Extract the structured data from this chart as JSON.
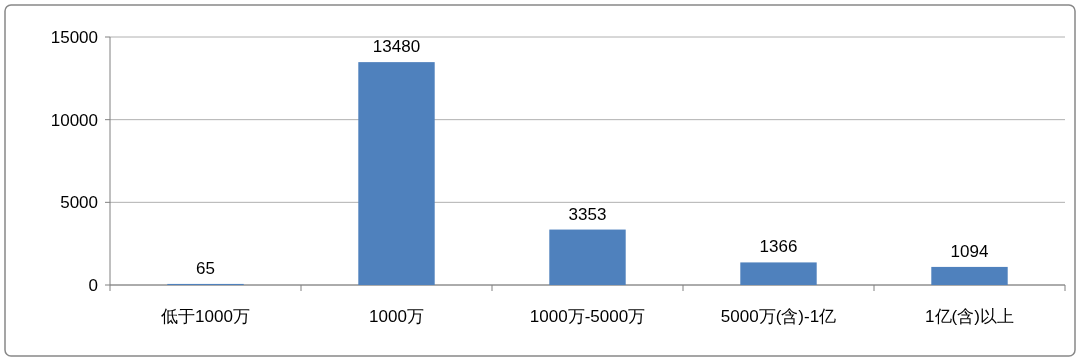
{
  "chart_data": {
    "type": "bar",
    "categories": [
      "低于1000万",
      "1000万",
      "1000万-5000万",
      "5000万(含)-1亿",
      "1亿(含)以上"
    ],
    "values": [
      65,
      13480,
      3353,
      1366,
      1094
    ],
    "color": "#4f81bd",
    "ylim": [
      0,
      15000
    ],
    "yticks": [
      0,
      5000,
      10000,
      15000
    ],
    "grid": "y",
    "data_labels": true
  }
}
